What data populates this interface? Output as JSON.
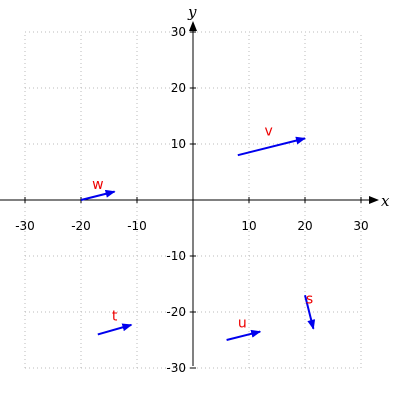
{
  "chart_data": {
    "type": "vector-field",
    "xlabel": "x",
    "ylabel": "y",
    "xlim": [
      -30,
      30
    ],
    "ylim": [
      -30,
      30
    ],
    "xticks": [
      -30,
      -20,
      -10,
      10,
      20,
      30
    ],
    "yticks": [
      -30,
      -20,
      -10,
      10,
      20,
      30
    ],
    "grid": true,
    "colors": {
      "vector": "#0000ee",
      "label": "#ee0000",
      "grid": "#bbbbbb",
      "axis": "#000000"
    },
    "vectors": [
      {
        "name": "v",
        "x0": 8,
        "y0": 8,
        "x1": 20,
        "y1": 11,
        "label_x": 13.5,
        "label_y": 11.5
      },
      {
        "name": "w",
        "x0": -20,
        "y0": 0,
        "x1": -14,
        "y1": 1.5,
        "label_x": -17,
        "label_y": 2
      },
      {
        "name": "t",
        "x0": -17,
        "y0": -24,
        "x1": -11,
        "y1": -22.3,
        "label_x": -14,
        "label_y": -21.5
      },
      {
        "name": "u",
        "x0": 6,
        "y0": -25,
        "x1": 12,
        "y1": -23.5,
        "label_x": 8.8,
        "label_y": -22.8
      },
      {
        "name": "s",
        "x0": 20,
        "y0": -17,
        "x1": 21.5,
        "y1": -23,
        "label_x": 20.8,
        "label_y": -18.5
      }
    ]
  }
}
